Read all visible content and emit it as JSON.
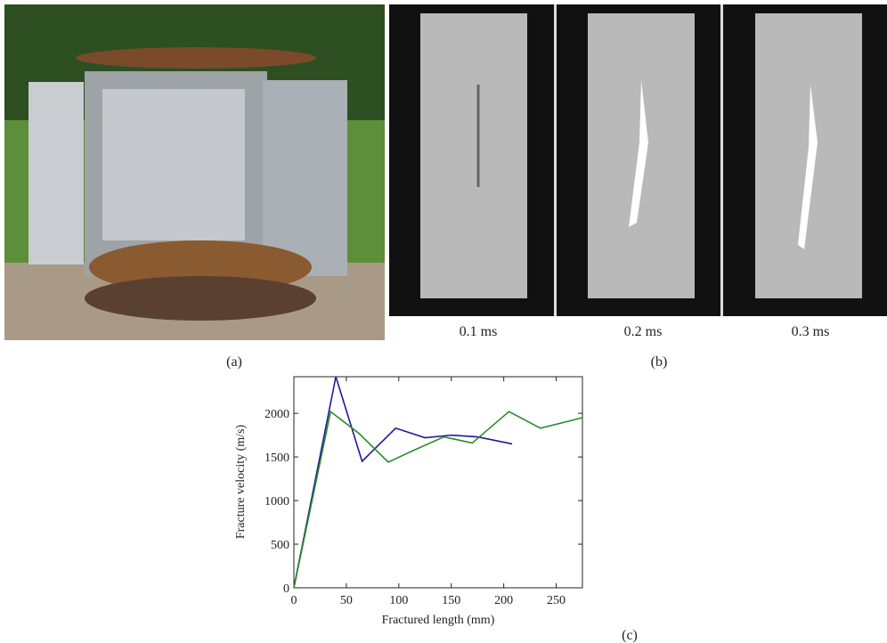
{
  "panels": {
    "a": {
      "label": "(a)"
    },
    "b": {
      "label": "(b)",
      "frames": [
        "0.1 ms",
        "0.2 ms",
        "0.3 ms"
      ]
    },
    "c": {
      "label": "(c)"
    }
  },
  "chart_data": {
    "type": "line",
    "xlabel": "Fractured length (mm)",
    "ylabel": "Fracture velocity (m/s)",
    "xlim": [
      0,
      275
    ],
    "ylim": [
      0,
      2420
    ],
    "xticks": [
      0,
      50,
      100,
      150,
      200,
      250
    ],
    "yticks": [
      0,
      500,
      1000,
      1500,
      2000
    ],
    "series": [
      {
        "color": "#1c1c96",
        "x": [
          0,
          40,
          65,
          97,
          125,
          150,
          175,
          208
        ],
        "values": [
          0,
          2420,
          1450,
          1830,
          1720,
          1750,
          1730,
          1650
        ]
      },
      {
        "color": "#2a8a2a",
        "x": [
          0,
          35,
          62,
          90,
          113,
          143,
          170,
          205,
          235,
          275
        ],
        "values": [
          0,
          2020,
          1770,
          1440,
          1570,
          1730,
          1660,
          2020,
          1830,
          1950
        ]
      }
    ]
  }
}
